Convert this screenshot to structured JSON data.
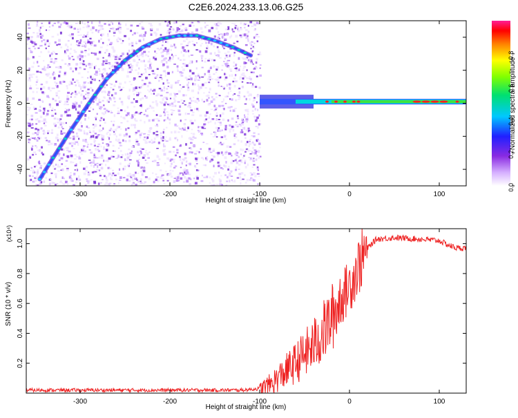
{
  "title": "C2E6.2024.233.13.06.G25",
  "chart_data": [
    {
      "type": "heatmap",
      "xlabel": "Height of straight line (km)",
      "ylabel": "Frequency (Hz)",
      "xlim": [
        -360,
        130
      ],
      "ylim": [
        -50,
        50
      ],
      "xticks": [
        -300,
        -200,
        -100,
        0,
        100
      ],
      "yticks": [
        -40,
        -20,
        0,
        20,
        40
      ],
      "colorbar": {
        "label": "Normalized spectral amplitude",
        "range": [
          0,
          1
        ],
        "ticks": [
          0.0,
          0.2,
          0.4,
          0.6,
          0.8
        ],
        "colormap": "rainbow (white-violet-blue-cyan-green-yellow-red-magenta)"
      },
      "features": {
        "doppler_arc": [
          {
            "x": -345,
            "y": -46
          },
          {
            "x": -330,
            "y": -33
          },
          {
            "x": -310,
            "y": -16
          },
          {
            "x": -290,
            "y": 0
          },
          {
            "x": -270,
            "y": 15
          },
          {
            "x": -250,
            "y": 26
          },
          {
            "x": -230,
            "y": 34
          },
          {
            "x": -210,
            "y": 39
          },
          {
            "x": -190,
            "y": 41
          },
          {
            "x": -170,
            "y": 41
          },
          {
            "x": -150,
            "y": 38
          },
          {
            "x": -130,
            "y": 34
          },
          {
            "x": -110,
            "y": 29
          }
        ],
        "carrier_line": {
          "x_start": -100,
          "x_end": 130,
          "frequency": 1
        }
      }
    },
    {
      "type": "line",
      "xlabel": "Height of straight line (km)",
      "ylabel": "SNR (10 * v/v)",
      "scale_label": "(x10⁴)",
      "xlim": [
        -360,
        130
      ],
      "ylim": [
        0,
        1.1
      ],
      "xticks": [
        -300,
        -200,
        -100,
        0,
        100
      ],
      "yticks": [
        0.2,
        0.4,
        0.6,
        0.8,
        1.0
      ],
      "series": [
        {
          "color": "#ee2222",
          "x": [
            -360,
            -300,
            -200,
            -120,
            -100,
            -90,
            -80,
            -70,
            -60,
            -50,
            -40,
            -30,
            -20,
            -10,
            0,
            10,
            20,
            30,
            50,
            80,
            100,
            110,
            120,
            130
          ],
          "y": [
            0.02,
            0.02,
            0.02,
            0.02,
            0.03,
            0.05,
            0.1,
            0.15,
            0.2,
            0.26,
            0.32,
            0.4,
            0.5,
            0.62,
            0.72,
            0.85,
            0.97,
            1.03,
            1.04,
            1.03,
            1.02,
            0.99,
            0.97,
            0.97
          ]
        }
      ]
    }
  ]
}
